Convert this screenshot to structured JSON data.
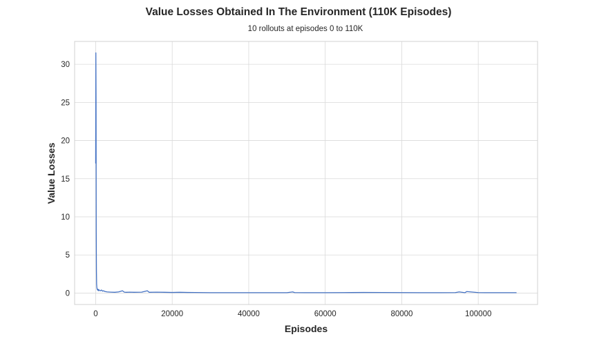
{
  "chart_data": {
    "type": "line",
    "title": "Value Losses Obtained In The Environment (110K Episodes)",
    "subtitle": "10 rollouts at episodes 0 to 110K",
    "xlabel": "Episodes",
    "ylabel": "Value Losses",
    "xlim": [
      -5500,
      115500
    ],
    "ylim": [
      -1.5,
      33
    ],
    "xticks": [
      0,
      20000,
      40000,
      60000,
      80000,
      100000
    ],
    "yticks": [
      0,
      5,
      10,
      15,
      20,
      25,
      30
    ],
    "grid": true,
    "series": [
      {
        "color": "#4472c4",
        "x": [
          0,
          50,
          100,
          150,
          200,
          250,
          300,
          350,
          400,
          500,
          600,
          700,
          800,
          1000,
          1200,
          1500,
          1800,
          2000,
          2500,
          3000,
          4000,
          5000,
          6000,
          7000,
          7500,
          8000,
          9000,
          10000,
          12000,
          13500,
          14000,
          16000,
          18000,
          20000,
          22000,
          24000,
          26000,
          28000,
          30000,
          35000,
          40000,
          45000,
          50000,
          51500,
          52000,
          55000,
          60000,
          65000,
          70000,
          75000,
          80000,
          85000,
          90000,
          94000,
          95000,
          96500,
          97000,
          100000,
          102000,
          105000,
          110000
        ],
        "y": [
          17.0,
          31.5,
          25.0,
          8.0,
          3.0,
          1.2,
          0.8,
          0.6,
          0.5,
          0.4,
          0.5,
          0.3,
          0.45,
          0.35,
          0.3,
          0.4,
          0.25,
          0.3,
          0.2,
          0.15,
          0.12,
          0.1,
          0.15,
          0.3,
          0.12,
          0.1,
          0.12,
          0.1,
          0.12,
          0.3,
          0.1,
          0.12,
          0.1,
          0.08,
          0.1,
          0.08,
          0.07,
          0.06,
          0.05,
          0.05,
          0.05,
          0.05,
          0.05,
          0.15,
          0.06,
          0.05,
          0.05,
          0.06,
          0.08,
          0.07,
          0.06,
          0.05,
          0.05,
          0.06,
          0.15,
          0.05,
          0.2,
          0.06,
          0.05,
          0.05,
          0.05
        ]
      }
    ]
  }
}
